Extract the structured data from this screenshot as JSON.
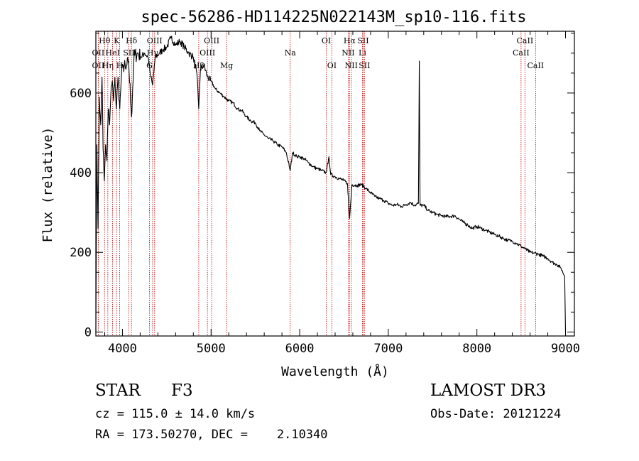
{
  "chart_data": {
    "type": "line",
    "title": "spec-56286-HD114225N022143M_sp10-116.fits",
    "xlabel": "Wavelength (Å)",
    "ylabel": "Flux (relative)",
    "xlim": [
      3700,
      9100
    ],
    "ylim": [
      -10,
      755
    ],
    "xticks": [
      4000,
      5000,
      6000,
      7000,
      8000,
      9000
    ],
    "yticks": [
      0,
      200,
      400,
      600
    ],
    "grid": false,
    "colors": {
      "line": "#000000",
      "markers": "#c00000"
    },
    "series": [
      {
        "name": "spectrum",
        "points": [
          [
            3700,
            0
          ],
          [
            3712,
            470
          ],
          [
            3725,
            260
          ],
          [
            3740,
            590
          ],
          [
            3755,
            520
          ],
          [
            3770,
            640
          ],
          [
            3782,
            460
          ],
          [
            3795,
            380
          ],
          [
            3810,
            470
          ],
          [
            3825,
            430
          ],
          [
            3840,
            560
          ],
          [
            3855,
            520
          ],
          [
            3870,
            600
          ],
          [
            3885,
            630
          ],
          [
            3900,
            580
          ],
          [
            3915,
            640
          ],
          [
            3930,
            560
          ],
          [
            3950,
            640
          ],
          [
            3970,
            560
          ],
          [
            3990,
            650
          ],
          [
            4010,
            670
          ],
          [
            4040,
            660
          ],
          [
            4070,
            680
          ],
          [
            4102,
            540
          ],
          [
            4130,
            690
          ],
          [
            4170,
            700
          ],
          [
            4210,
            690
          ],
          [
            4250,
            700
          ],
          [
            4290,
            690
          ],
          [
            4320,
            640
          ],
          [
            4340,
            620
          ],
          [
            4370,
            690
          ],
          [
            4420,
            700
          ],
          [
            4460,
            710
          ],
          [
            4500,
            715
          ],
          [
            4550,
            740
          ],
          [
            4600,
            720
          ],
          [
            4650,
            730
          ],
          [
            4700,
            715
          ],
          [
            4750,
            700
          ],
          [
            4800,
            690
          ],
          [
            4840,
            650
          ],
          [
            4861,
            560
          ],
          [
            4880,
            660
          ],
          [
            4920,
            670
          ],
          [
            4960,
            640
          ],
          [
            5000,
            630
          ],
          [
            5050,
            610
          ],
          [
            5100,
            600
          ],
          [
            5150,
            590
          ],
          [
            5200,
            580
          ],
          [
            5250,
            575
          ],
          [
            5300,
            560
          ],
          [
            5350,
            555
          ],
          [
            5400,
            540
          ],
          [
            5450,
            530
          ],
          [
            5500,
            525
          ],
          [
            5550,
            505
          ],
          [
            5600,
            495
          ],
          [
            5650,
            485
          ],
          [
            5700,
            480
          ],
          [
            5750,
            470
          ],
          [
            5800,
            465
          ],
          [
            5850,
            450
          ],
          [
            5893,
            405
          ],
          [
            5920,
            450
          ],
          [
            5970,
            440
          ],
          [
            6000,
            440
          ],
          [
            6050,
            435
          ],
          [
            6100,
            425
          ],
          [
            6150,
            415
          ],
          [
            6200,
            410
          ],
          [
            6250,
            405
          ],
          [
            6300,
            400
          ],
          [
            6330,
            440
          ],
          [
            6350,
            395
          ],
          [
            6400,
            390
          ],
          [
            6450,
            385
          ],
          [
            6500,
            380
          ],
          [
            6540,
            372
          ],
          [
            6563,
            285
          ],
          [
            6590,
            370
          ],
          [
            6650,
            368
          ],
          [
            6700,
            370
          ],
          [
            6750,
            360
          ],
          [
            6800,
            350
          ],
          [
            6850,
            340
          ],
          [
            6900,
            335
          ],
          [
            6950,
            330
          ],
          [
            7000,
            323
          ],
          [
            7050,
            318
          ],
          [
            7100,
            320
          ],
          [
            7150,
            315
          ],
          [
            7200,
            320
          ],
          [
            7250,
            325
          ],
          [
            7300,
            318
          ],
          [
            7340,
            323
          ],
          [
            7350,
            680
          ],
          [
            7358,
            318
          ],
          [
            7400,
            318
          ],
          [
            7450,
            305
          ],
          [
            7500,
            300
          ],
          [
            7550,
            295
          ],
          [
            7600,
            292
          ],
          [
            7650,
            290
          ],
          [
            7700,
            290
          ],
          [
            7750,
            292
          ],
          [
            7800,
            283
          ],
          [
            7850,
            275
          ],
          [
            7900,
            268
          ],
          [
            7950,
            260
          ],
          [
            8000,
            265
          ],
          [
            8050,
            260
          ],
          [
            8100,
            255
          ],
          [
            8150,
            250
          ],
          [
            8200,
            245
          ],
          [
            8250,
            240
          ],
          [
            8300,
            235
          ],
          [
            8350,
            230
          ],
          [
            8400,
            228
          ],
          [
            8450,
            222
          ],
          [
            8500,
            215
          ],
          [
            8550,
            208
          ],
          [
            8600,
            200
          ],
          [
            8650,
            198
          ],
          [
            8700,
            195
          ],
          [
            8750,
            190
          ],
          [
            8800,
            185
          ],
          [
            8850,
            175
          ],
          [
            8900,
            170
          ],
          [
            8950,
            160
          ],
          [
            8990,
            140
          ],
          [
            9000,
            0
          ]
        ]
      }
    ],
    "line_markers": [
      {
        "label": "Hθ",
        "wavelength": 3798,
        "row": 1
      },
      {
        "label": "OII",
        "wavelength": 3727,
        "row": 2
      },
      {
        "label": "OII",
        "wavelength": 3727,
        "row": 3
      },
      {
        "label": "Hη",
        "wavelength": 3835,
        "row": 3
      },
      {
        "label": "HeI",
        "wavelength": 3889,
        "row": 2
      },
      {
        "label": "K",
        "wavelength": 3934,
        "row": 1
      },
      {
        "label": "SII",
        "wavelength": 4072,
        "row": 2
      },
      {
        "label": "H",
        "wavelength": 3969,
        "row": 3
      },
      {
        "label": "Hδ",
        "wavelength": 4102,
        "row": 1
      },
      {
        "label": "OIII",
        "wavelength": 4363,
        "row": 1
      },
      {
        "label": "Hγ",
        "wavelength": 4340,
        "row": 2
      },
      {
        "label": "G",
        "wavelength": 4305,
        "row": 3
      },
      {
        "label": "Hβ",
        "wavelength": 4861,
        "row": 3
      },
      {
        "label": "OIII",
        "wavelength": 5007,
        "row": 1
      },
      {
        "label": "OIII",
        "wavelength": 4959,
        "row": 2
      },
      {
        "label": "Mg",
        "wavelength": 5175,
        "row": 3
      },
      {
        "label": "Na",
        "wavelength": 5893,
        "row": 2
      },
      {
        "label": "OI",
        "wavelength": 6300,
        "row": 1
      },
      {
        "label": "OI",
        "wavelength": 6363,
        "row": 3
      },
      {
        "label": "Hα",
        "wavelength": 6563,
        "row": 1
      },
      {
        "label": "NII",
        "wavelength": 6548,
        "row": 2
      },
      {
        "label": "NII",
        "wavelength": 6583,
        "row": 3
      },
      {
        "label": "SII",
        "wavelength": 6716,
        "row": 1
      },
      {
        "label": "Li",
        "wavelength": 6708,
        "row": 2
      },
      {
        "label": "SII",
        "wavelength": 6731,
        "row": 3
      },
      {
        "label": "CaII",
        "wavelength": 8542,
        "row": 1
      },
      {
        "label": "CaII",
        "wavelength": 8498,
        "row": 2
      },
      {
        "label": "CaII",
        "wavelength": 8662,
        "row": 3
      }
    ]
  },
  "info": {
    "object_class": "STAR",
    "subclass": "F3",
    "survey": "LAMOST DR3",
    "redshift": "cz = 115.0 ± 14.0 km/s",
    "obs_date": "Obs-Date: 20121224",
    "coords": "RA = 173.50270, DEC =    2.10340"
  }
}
